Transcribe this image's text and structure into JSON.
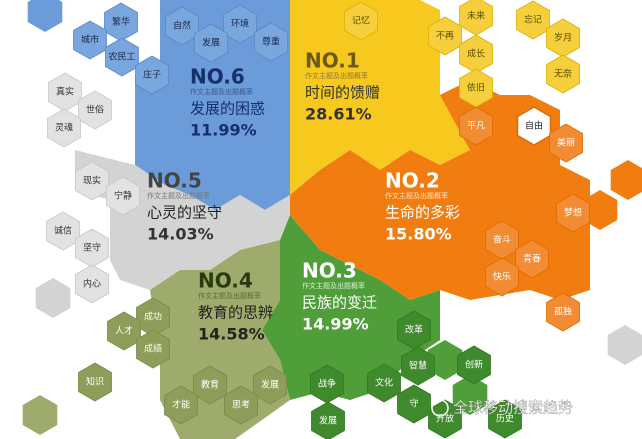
{
  "groups": [
    {
      "rank": "NO.1",
      "subtitle": "作文主题及出题概率",
      "name": "时间的馈赠",
      "percent": "28.61%",
      "keywords": [
        "记忆",
        "未来",
        "不再",
        "忘记",
        "成长",
        "岁月",
        "无奈",
        "依旧"
      ]
    },
    {
      "rank": "NO.2",
      "subtitle": "作文主题及出题概率",
      "name": "生命的多彩",
      "percent": "15.80%",
      "keywords": [
        "平凡",
        "自由",
        "美丽",
        "梦想",
        "奋斗",
        "青春",
        "快乐",
        "孤独"
      ]
    },
    {
      "rank": "NO.3",
      "subtitle": "作文主题及出题概率",
      "name": "民族的变迁",
      "percent": "14.99%",
      "keywords": [
        "改革",
        "智慧",
        "文化",
        "创新",
        "战争",
        "发展",
        "开放",
        "历史",
        "守"
      ]
    },
    {
      "rank": "NO.4",
      "subtitle": "作文主题及出题概率",
      "name": "教育的思辨",
      "percent": "14.58%",
      "keywords": [
        "成功",
        "人才",
        "成绩",
        "知识",
        "教育",
        "发展",
        "才能",
        "思考"
      ]
    },
    {
      "rank": "NO.5",
      "subtitle": "作文主题及出题概率",
      "name": "心灵的坚守",
      "percent": "14.03%",
      "keywords": [
        "现实",
        "宁静",
        "诚信",
        "坚守",
        "内心",
        "真实",
        "世俗",
        "灵魂"
      ]
    },
    {
      "rank": "NO.6",
      "subtitle": "作文主题及出题概率",
      "name": "发展的困惑",
      "percent": "11.99%",
      "keywords": [
        "繁华",
        "城市",
        "农民工",
        "庄子",
        "自然",
        "环境",
        "发展",
        "尊重"
      ]
    }
  ],
  "watermark": "全球移动搜索趋势"
}
